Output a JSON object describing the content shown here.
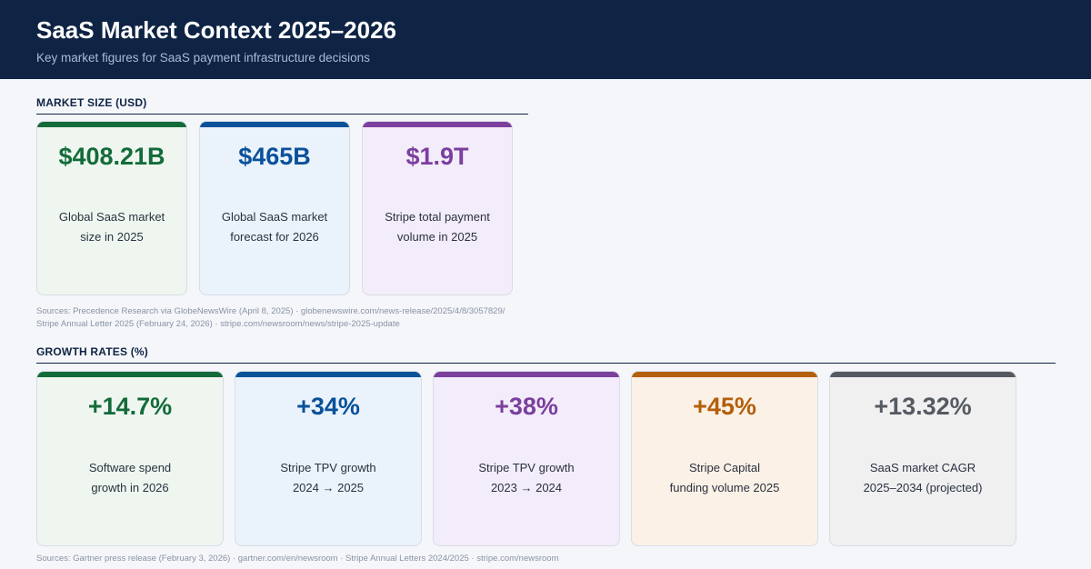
{
  "header": {
    "title": "SaaS Market Context 2025–2026",
    "subtitle": "Key market figures for SaaS payment infrastructure decisions"
  },
  "market_size": {
    "label": "MARKET SIZE (USD)",
    "cards": [
      {
        "value": "$408.21B",
        "desc_line1": "Global SaaS market",
        "desc_line2": "size in 2025",
        "accent": "#146b3a",
        "bg": "#eef6ef"
      },
      {
        "value": "$465B",
        "desc_line1": "Global SaaS market",
        "desc_line2": "forecast for 2026",
        "accent": "#0a519a",
        "bg": "#eaf2fb"
      },
      {
        "value": "$1.9T",
        "desc_line1": "Stripe total payment",
        "desc_line2": "volume in 2025",
        "accent": "#7b3f9e",
        "bg": "#f3ecfa"
      }
    ],
    "sources_line1": "Sources: Precedence Research via GlobeNewsWire (April 8, 2025) · globenewswire.com/news-release/2025/4/8/3057829/",
    "sources_line2": "Stripe Annual Letter 2025 (February 24, 2026) · stripe.com/newsroom/news/stripe-2025-update"
  },
  "growth_rates": {
    "label": "GROWTH RATES (%)",
    "cards": [
      {
        "value": "+14.7%",
        "desc_line1": "Software spend",
        "desc_line2": "growth in 2026",
        "accent": "#146b3a",
        "bg": "#eef6ef"
      },
      {
        "value": "+34%",
        "desc_line1": "Stripe TPV growth",
        "desc_line2": "2024 → 2025",
        "accent": "#0a519a",
        "bg": "#eaf2fb"
      },
      {
        "value": "+38%",
        "desc_line1": "Stripe TPV growth",
        "desc_line2": "2023 → 2024",
        "accent": "#7b3f9e",
        "bg": "#f3ecfa"
      },
      {
        "value": "+45%",
        "desc_line1": "Stripe Capital",
        "desc_line2": "funding volume 2025",
        "accent": "#b35f0c",
        "bg": "#fbf1e6"
      },
      {
        "value": "+13.32%",
        "desc_line1": "SaaS market CAGR",
        "desc_line2": "2025–2034 (projected)",
        "accent": "#555a61",
        "bg": "#f0f0f1"
      }
    ],
    "sources": "Sources: Gartner press release (February 3, 2026) · gartner.com/en/newsroom · Stripe Annual Letters 2024/2025 · stripe.com/newsroom"
  }
}
